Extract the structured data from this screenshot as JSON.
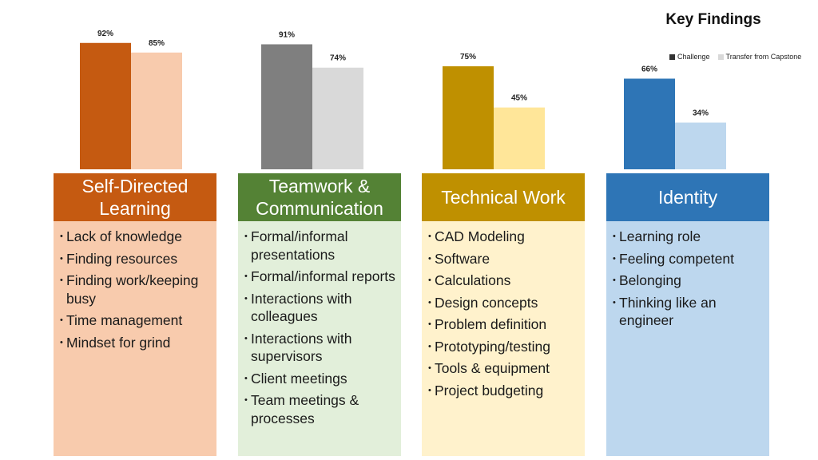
{
  "title": "Key Findings",
  "legend": [
    "Challenge",
    "Transfer from Capstone"
  ],
  "chart_data": {
    "type": "bar",
    "categories": [
      "Self-Directed Learning",
      "Teamwork & Communication",
      "Technical Work",
      "Identity"
    ],
    "series": [
      {
        "name": "Challenge",
        "values": [
          92,
          91,
          75,
          66
        ]
      },
      {
        "name": "Transfer from Capstone",
        "values": [
          85,
          74,
          45,
          34
        ]
      }
    ],
    "value_suffix": "%",
    "ylim": [
      0,
      100
    ],
    "grid": false,
    "legend_position": "top-right"
  },
  "colors": {
    "challenge": [
      "#c55a11",
      "#7f7f7f",
      "#bf9000",
      "#2e75b6"
    ],
    "transfer": [
      "#f8cbad",
      "#d9d9d9",
      "#ffe699",
      "#bdd7ee"
    ],
    "head": [
      "#c55a11",
      "#548235",
      "#bf9000",
      "#2e75b6"
    ],
    "body": [
      "#f8cbad",
      "#e2efda",
      "#fff2cc",
      "#bdd7ee"
    ],
    "legend_challenge": "#333333",
    "legend_transfer": "#d9d9d9"
  },
  "panels": [
    {
      "title": "Self-Directed Learning",
      "items": [
        "Lack of knowledge",
        "Finding resources",
        "Finding work/keeping busy",
        "Time management",
        "Mindset for grind"
      ]
    },
    {
      "title": "Teamwork & Communication",
      "items": [
        "Formal/informal presentations",
        "Formal/informal reports",
        "Interactions with colleagues",
        "Interactions with supervisors",
        "Client meetings",
        "Team meetings & processes"
      ]
    },
    {
      "title": "Technical Work",
      "items": [
        "CAD Modeling",
        "Software",
        "Calculations",
        "Design concepts",
        "Problem definition",
        "Prototyping/testing",
        "Tools & equipment",
        "Project budgeting"
      ]
    },
    {
      "title": "Identity",
      "items": [
        "Learning role",
        "Feeling competent",
        "Belonging",
        "Thinking like an engineer"
      ]
    }
  ]
}
